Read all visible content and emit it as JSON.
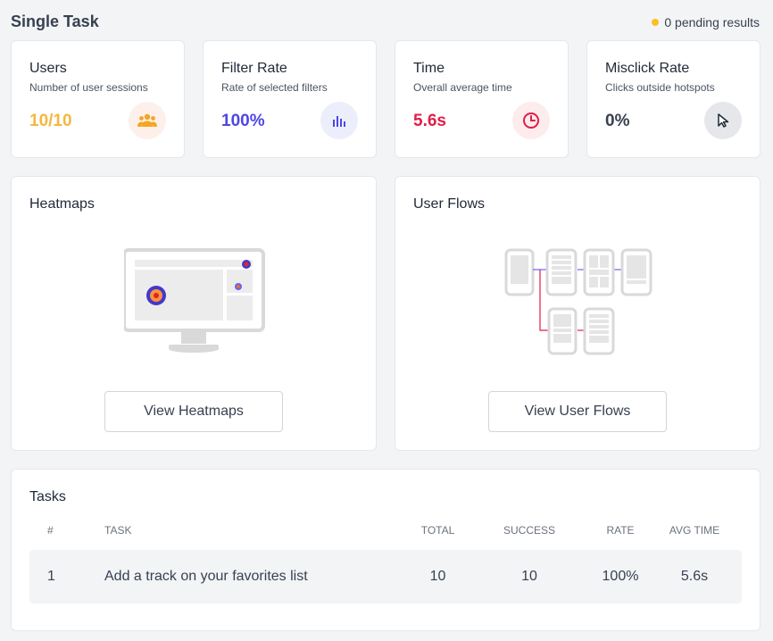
{
  "header": {
    "title": "Single Task",
    "pending_text": "0 pending results",
    "pending_dot_color": "#fbbf24"
  },
  "stats": [
    {
      "title": "Users",
      "subtitle": "Number of user sessions",
      "value": "10/10",
      "color": "#f4b740",
      "icon_bg": "#fdf0ea",
      "icon": "users-icon"
    },
    {
      "title": "Filter Rate",
      "subtitle": "Rate of selected filters",
      "value": "100%",
      "color": "#4f46e5",
      "icon_bg": "#eceefb",
      "icon": "bar-chart-icon"
    },
    {
      "title": "Time",
      "subtitle": "Overall average time",
      "value": "5.6s",
      "color": "#e11d48",
      "icon_bg": "#fdecec",
      "icon": "clock-icon"
    },
    {
      "title": "Misclick Rate",
      "subtitle": "Clicks outside hotspots",
      "value": "0%",
      "color": "#374151",
      "icon_bg": "#e5e7eb",
      "icon": "cursor-icon"
    }
  ],
  "heatmaps": {
    "title": "Heatmaps",
    "button": "View Heatmaps"
  },
  "user_flows": {
    "title": "User Flows",
    "button": "View User Flows"
  },
  "tasks": {
    "title": "Tasks",
    "columns": [
      "#",
      "TASK",
      "TOTAL",
      "SUCCESS",
      "RATE",
      "AVG TIME"
    ],
    "rows": [
      {
        "num": "1",
        "task": "Add a track on your favorites list",
        "total": "10",
        "success": "10",
        "rate": "100%",
        "avg_time": "5.6s"
      }
    ]
  }
}
